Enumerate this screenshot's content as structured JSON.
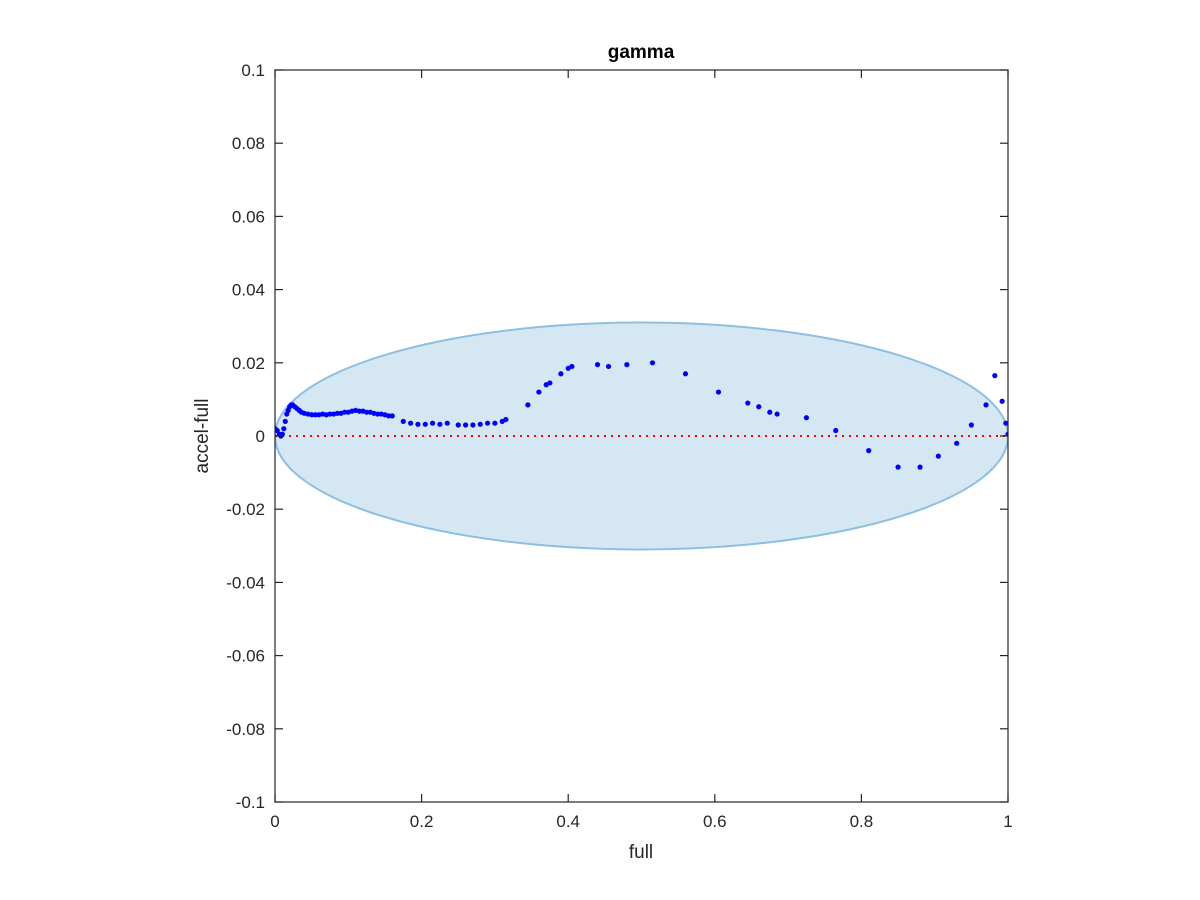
{
  "chart_data": {
    "type": "scatter",
    "title": "gamma",
    "xlabel": "full",
    "ylabel": "accel-full",
    "xlim": [
      0,
      1
    ],
    "ylim": [
      -0.1,
      0.1
    ],
    "xticks": [
      0,
      0.2,
      0.4,
      0.6,
      0.8,
      1
    ],
    "xtick_labels": [
      "0",
      "0.2",
      "0.4",
      "0.6",
      "0.8",
      "1"
    ],
    "yticks": [
      0.1,
      0.08,
      0.06,
      0.04,
      0.02,
      0,
      -0.02,
      -0.04,
      -0.06,
      -0.08,
      -0.1
    ],
    "ytick_labels": [
      "0.1",
      "0.08",
      "0.06",
      "0.04",
      "0.02",
      "0",
      "-0.02",
      "-0.04",
      "-0.06",
      "-0.08",
      "-0.1"
    ],
    "grid": false,
    "colors": {
      "points": "#0000ff",
      "zero_line": "#ff0000",
      "ellipse_fill": "#d6e7f4",
      "ellipse_edge": "#8ebfe0"
    },
    "reference_line": {
      "y": 0,
      "style": "dotted"
    },
    "ellipse": {
      "center": [
        0.5,
        0
      ],
      "x_semi_axis": 0.5,
      "y_semi_axis": 0.031
    },
    "series": [
      {
        "x": [
          0.0,
          0.003,
          0.006,
          0.008,
          0.01,
          0.012,
          0.014,
          0.016,
          0.018,
          0.02,
          0.022,
          0.024,
          0.027,
          0.03,
          0.033,
          0.036,
          0.04,
          0.045,
          0.05,
          0.055,
          0.06,
          0.065,
          0.07,
          0.075,
          0.08,
          0.085,
          0.09,
          0.095,
          0.1,
          0.105,
          0.11,
          0.115,
          0.12,
          0.125,
          0.13,
          0.135,
          0.14,
          0.145,
          0.15,
          0.155,
          0.16,
          0.175,
          0.185,
          0.195,
          0.205,
          0.215,
          0.225,
          0.235,
          0.25,
          0.26,
          0.27,
          0.28,
          0.29,
          0.3,
          0.31,
          0.315,
          0.345,
          0.36,
          0.37,
          0.375,
          0.39,
          0.4,
          0.405,
          0.44,
          0.455,
          0.48,
          0.515,
          0.56,
          0.605,
          0.645,
          0.66,
          0.675,
          0.685,
          0.725,
          0.765,
          0.81,
          0.85,
          0.88,
          0.905,
          0.93,
          0.95,
          0.97,
          0.982,
          0.992,
          0.997,
          1.0
        ],
        "y": [
          0.002,
          0.0015,
          0.0005,
          0.0,
          0.0005,
          0.002,
          0.004,
          0.006,
          0.007,
          0.008,
          0.0085,
          0.0085,
          0.008,
          0.0075,
          0.007,
          0.0065,
          0.0062,
          0.006,
          0.0058,
          0.0058,
          0.0058,
          0.006,
          0.0058,
          0.006,
          0.006,
          0.0062,
          0.0062,
          0.0065,
          0.0065,
          0.0068,
          0.007,
          0.0068,
          0.0068,
          0.0065,
          0.0065,
          0.0062,
          0.006,
          0.006,
          0.0058,
          0.0055,
          0.0055,
          0.004,
          0.0035,
          0.0032,
          0.0032,
          0.0035,
          0.0032,
          0.0035,
          0.003,
          0.003,
          0.003,
          0.0032,
          0.0035,
          0.0035,
          0.004,
          0.0045,
          0.0085,
          0.012,
          0.014,
          0.0145,
          0.017,
          0.0185,
          0.019,
          0.0195,
          0.019,
          0.0195,
          0.02,
          0.017,
          0.012,
          0.009,
          0.008,
          0.0065,
          0.006,
          0.005,
          0.0015,
          -0.004,
          -0.0085,
          -0.0085,
          -0.0055,
          -0.002,
          0.003,
          0.0085,
          0.0165,
          0.0095,
          0.0035,
          0.0005
        ]
      }
    ]
  }
}
